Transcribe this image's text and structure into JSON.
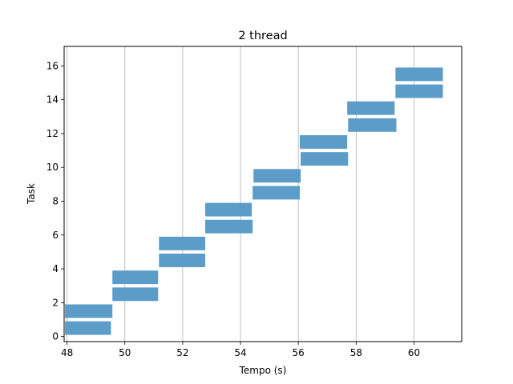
{
  "chart_data": {
    "type": "gantt",
    "title": "2 thread",
    "xlabel": "Tempo (s)",
    "ylabel": "Task",
    "xlim": [
      47.9,
      61.65
    ],
    "ylim": [
      -0.3,
      17.15
    ],
    "xticks": [
      48,
      50,
      52,
      54,
      56,
      58,
      60
    ],
    "yticks": [
      0,
      2,
      4,
      6,
      8,
      10,
      12,
      14,
      16
    ],
    "grid": "vertical",
    "bar_color": "#5b9cc9",
    "bar_height": 0.8,
    "bars": [
      {
        "task": 1,
        "start": 47.93,
        "end": 49.52
      },
      {
        "task": 2,
        "start": 47.93,
        "end": 49.57
      },
      {
        "task": 3,
        "start": 49.57,
        "end": 51.15
      },
      {
        "task": 4,
        "start": 49.57,
        "end": 51.15
      },
      {
        "task": 5,
        "start": 51.18,
        "end": 52.78
      },
      {
        "task": 6,
        "start": 51.18,
        "end": 52.78
      },
      {
        "task": 7,
        "start": 52.78,
        "end": 54.42
      },
      {
        "task": 8,
        "start": 52.78,
        "end": 54.39
      },
      {
        "task": 9,
        "start": 54.42,
        "end": 56.05
      },
      {
        "task": 10,
        "start": 54.45,
        "end": 56.08
      },
      {
        "task": 11,
        "start": 56.08,
        "end": 57.72
      },
      {
        "task": 12,
        "start": 56.05,
        "end": 57.69
      },
      {
        "task": 13,
        "start": 57.72,
        "end": 59.39
      },
      {
        "task": 14,
        "start": 57.69,
        "end": 59.33
      },
      {
        "task": 15,
        "start": 59.36,
        "end": 61.0
      },
      {
        "task": 16,
        "start": 59.36,
        "end": 61.0
      }
    ]
  }
}
